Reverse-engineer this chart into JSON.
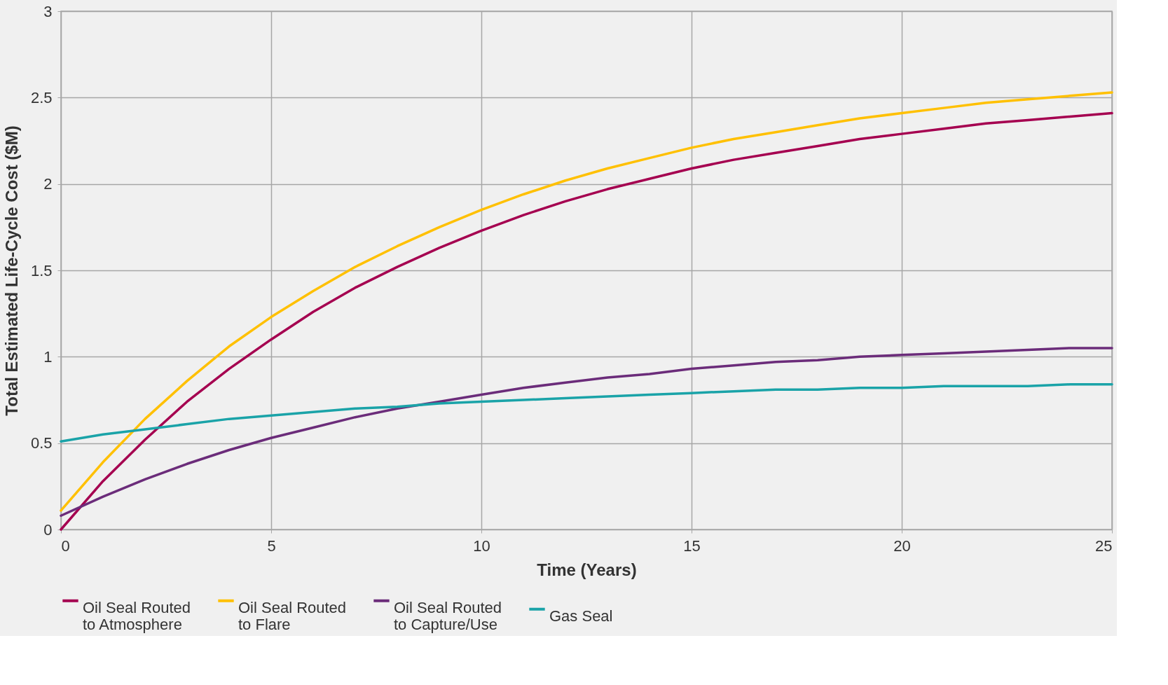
{
  "chart_data": {
    "type": "line",
    "xlabel": "Time (Years)",
    "ylabel": "Total Estimated Life-Cycle Cost ($M)",
    "x": [
      0,
      1,
      2,
      3,
      4,
      5,
      6,
      7,
      8,
      9,
      10,
      11,
      12,
      13,
      14,
      15,
      16,
      17,
      18,
      19,
      20,
      21,
      22,
      23,
      24,
      25
    ],
    "xlim": [
      0,
      25
    ],
    "xticks": [
      0,
      5,
      10,
      15,
      20,
      25
    ],
    "ylim": [
      0,
      3
    ],
    "yticks": [
      0,
      0.5,
      1,
      1.5,
      2,
      2.5,
      3
    ],
    "grid": true,
    "legend": "bottom",
    "marker": "none",
    "line_style": "solid",
    "series": [
      {
        "name": "Oil Seal Routed\nto Atmosphere",
        "color": "#a50050",
        "values": [
          0,
          0.28,
          0.52,
          0.74,
          0.93,
          1.1,
          1.26,
          1.4,
          1.52,
          1.63,
          1.73,
          1.82,
          1.9,
          1.97,
          2.03,
          2.09,
          2.14,
          2.18,
          2.22,
          2.26,
          2.29,
          2.32,
          2.35,
          2.37,
          2.39,
          2.41
        ]
      },
      {
        "name": "Oil Seal Routed\nto Flare",
        "color": "#ffc000",
        "values": [
          0.11,
          0.39,
          0.64,
          0.86,
          1.06,
          1.23,
          1.38,
          1.52,
          1.64,
          1.75,
          1.85,
          1.94,
          2.02,
          2.09,
          2.15,
          2.21,
          2.26,
          2.3,
          2.34,
          2.38,
          2.41,
          2.44,
          2.47,
          2.49,
          2.51,
          2.53
        ]
      },
      {
        "name": "Oil Seal Routed\nto Capture/Use",
        "color": "#6b2c7a",
        "values": [
          0.08,
          0.19,
          0.29,
          0.38,
          0.46,
          0.53,
          0.59,
          0.65,
          0.7,
          0.74,
          0.78,
          0.82,
          0.85,
          0.88,
          0.9,
          0.93,
          0.95,
          0.97,
          0.98,
          1.0,
          1.01,
          1.02,
          1.03,
          1.04,
          1.05,
          1.05
        ]
      },
      {
        "name": "Gas Seal",
        "color": "#1aa3a8",
        "values": [
          0.51,
          0.55,
          0.58,
          0.61,
          0.64,
          0.66,
          0.68,
          0.7,
          0.71,
          0.73,
          0.74,
          0.75,
          0.76,
          0.77,
          0.78,
          0.79,
          0.8,
          0.81,
          0.81,
          0.82,
          0.82,
          0.83,
          0.83,
          0.83,
          0.84,
          0.84
        ]
      }
    ]
  }
}
